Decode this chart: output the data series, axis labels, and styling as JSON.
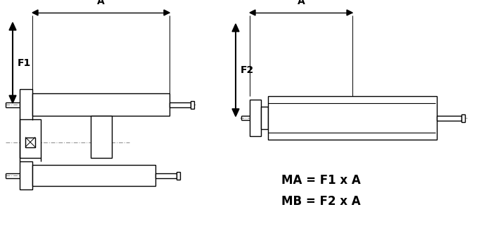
{
  "bg_color": "#ffffff",
  "line_color": "#000000",
  "dash_color": "#888888",
  "text_color": "#000000",
  "fig_width": 6.98,
  "fig_height": 3.42,
  "formula1": "MA = F1 x A",
  "formula2": "MB = F2 x A",
  "label_A": "A",
  "label_F1": "F1",
  "label_F2": "F2",
  "lw_main": 1.0,
  "lw_arrow": 1.5
}
